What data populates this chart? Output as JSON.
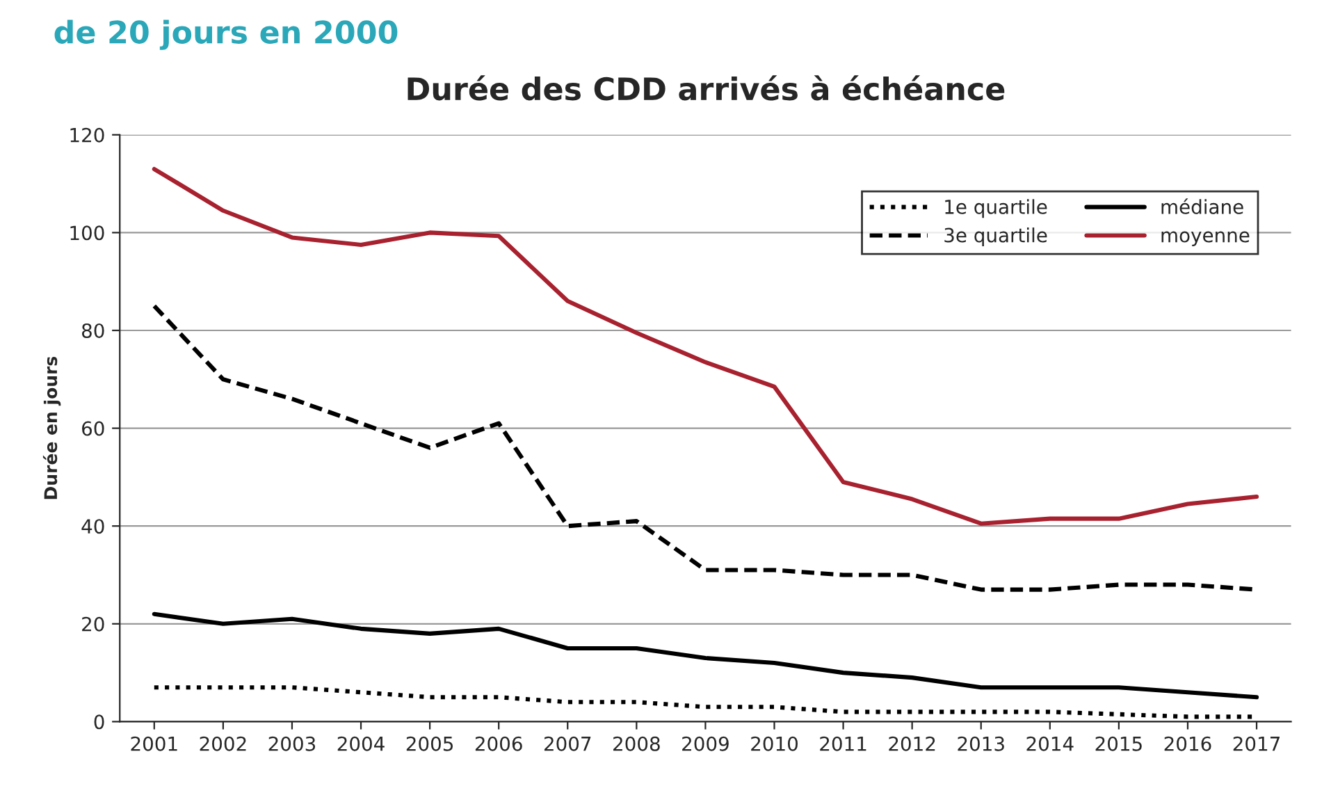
{
  "chart_data": {
    "type": "line",
    "title": "Durée des CDD arrivés à échéance",
    "ylabel": "Durée en jours",
    "annotations": [
      "de 20 jours en 2000"
    ],
    "categories": [
      "2001",
      "2002",
      "2003",
      "2004",
      "2005",
      "2006",
      "2007",
      "2008",
      "2009",
      "2010",
      "2011",
      "2012",
      "2013",
      "2014",
      "2015",
      "2016",
      "2017"
    ],
    "series": [
      {
        "name": "1e quartile",
        "color": "#000000",
        "line_style": "dotted",
        "values": [
          7,
          7,
          7,
          6,
          5,
          5,
          4,
          4,
          3,
          3,
          2,
          2,
          2,
          2,
          1.5,
          1,
          1
        ]
      },
      {
        "name": "3e quartile",
        "color": "#000000",
        "line_style": "dashed",
        "values": [
          85,
          70,
          66,
          61,
          56,
          61,
          40,
          41,
          31,
          31,
          30,
          30,
          27,
          27,
          28,
          28,
          27
        ]
      },
      {
        "name": "médiane",
        "color": "#000000",
        "line_style": "solid",
        "values": [
          22,
          20,
          21,
          19,
          18,
          19,
          15,
          15,
          13,
          12,
          10,
          9,
          7,
          7,
          7,
          6,
          5
        ]
      },
      {
        "name": "moyenne",
        "color": "#a8212f",
        "line_style": "solid",
        "values": [
          113,
          104.5,
          99,
          97.5,
          100,
          99.3,
          86,
          79.5,
          73.5,
          68.5,
          49,
          45.5,
          40.5,
          41.5,
          41.5,
          44.5,
          46
        ]
      }
    ],
    "ylim": [
      0,
      120
    ],
    "yticks": [
      0,
      20,
      40,
      60,
      80,
      100,
      120
    ],
    "grid": "y",
    "legend": "top right",
    "marker": "none"
  }
}
